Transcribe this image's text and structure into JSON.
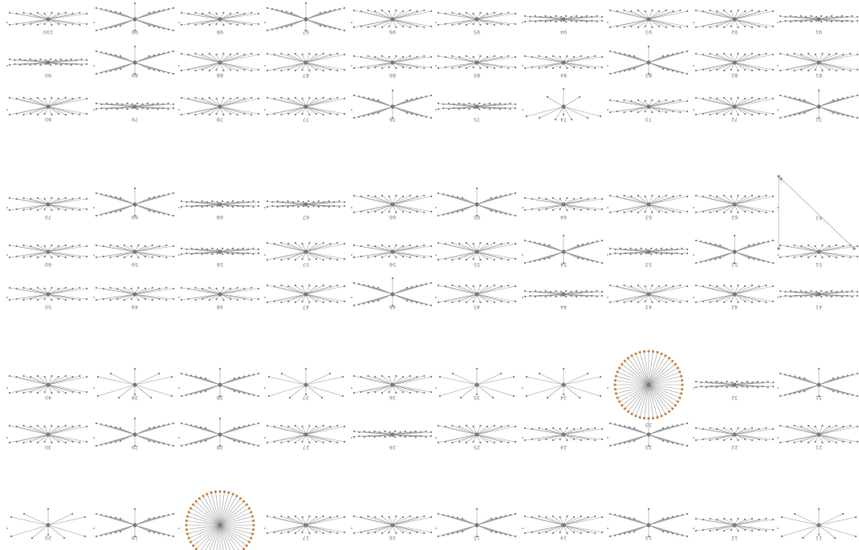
{
  "diagram": {
    "type": "star-network-grid",
    "edge_color": "#9b9b9b",
    "node_color": "#8a8a8a",
    "highlight_node_color": "#c98a4b",
    "rows": [
      {
        "cells": [
          {
            "label": "100",
            "style": "flat"
          },
          {
            "label": "99",
            "style": "x"
          },
          {
            "label": "98",
            "style": "flat"
          },
          {
            "label": "97",
            "style": "x"
          },
          {
            "label": "96",
            "style": "mid"
          },
          {
            "label": "95",
            "style": "flat"
          },
          {
            "label": "94",
            "style": "thin"
          },
          {
            "label": "93",
            "style": "mid"
          },
          {
            "label": "92",
            "style": "mid"
          },
          {
            "label": "91",
            "style": "thin"
          }
        ]
      },
      {
        "cells": [
          {
            "label": "90",
            "style": "thin"
          },
          {
            "label": "89",
            "style": "x"
          },
          {
            "label": "88",
            "style": "mid"
          },
          {
            "label": "87",
            "style": "mid"
          },
          {
            "label": "86",
            "style": "flat"
          },
          {
            "label": "85",
            "style": "flat"
          },
          {
            "label": "84",
            "style": "flat"
          },
          {
            "label": "83",
            "style": "x"
          },
          {
            "label": "82",
            "style": "mid"
          },
          {
            "label": "81",
            "style": "mid"
          }
        ]
      },
      {
        "cells": [
          {
            "label": "80",
            "style": "mid"
          },
          {
            "label": "79",
            "style": "thin"
          },
          {
            "label": "78",
            "style": "mid"
          },
          {
            "label": "77",
            "style": "mid"
          },
          {
            "label": "76",
            "style": "x"
          },
          {
            "label": "75",
            "style": "thin"
          },
          {
            "label": "74",
            "style": "tall"
          },
          {
            "label": "73",
            "style": "flat"
          },
          {
            "label": "72",
            "style": "mid"
          },
          {
            "label": "71",
            "style": "x"
          }
        ]
      },
      {
        "cells": [
          {
            "label": "70",
            "style": "flat"
          },
          {
            "label": "69",
            "style": "x"
          },
          {
            "label": "68",
            "style": "thin"
          },
          {
            "label": "67",
            "style": "thin"
          },
          {
            "label": "66",
            "style": "mid"
          },
          {
            "label": "65",
            "style": "x"
          },
          {
            "label": "64",
            "style": "flat"
          },
          {
            "label": "63",
            "style": "mid"
          },
          {
            "label": "62",
            "style": "mid"
          },
          {
            "label": "61",
            "style": "triangle"
          }
        ]
      },
      {
        "cells": [
          {
            "label": "60",
            "style": "flat"
          },
          {
            "label": "59",
            "style": "flat"
          },
          {
            "label": "58",
            "style": "thin"
          },
          {
            "label": "57",
            "style": "mid"
          },
          {
            "label": "56",
            "style": "flat"
          },
          {
            "label": "55",
            "style": "mid"
          },
          {
            "label": "54",
            "style": "x"
          },
          {
            "label": "53",
            "style": "thin"
          },
          {
            "label": "52",
            "style": "x"
          },
          {
            "label": "51",
            "style": "flat"
          }
        ]
      },
      {
        "cells": [
          {
            "label": "50",
            "style": "flat"
          },
          {
            "label": "49",
            "style": "flat"
          },
          {
            "label": "48",
            "style": "flat"
          },
          {
            "label": "47",
            "style": "mid"
          },
          {
            "label": "46",
            "style": "x"
          },
          {
            "label": "45",
            "style": "mid"
          },
          {
            "label": "44",
            "style": "thin"
          },
          {
            "label": "43",
            "style": "mid"
          },
          {
            "label": "42",
            "style": "mid"
          },
          {
            "label": "41",
            "style": "thin"
          }
        ]
      },
      {
        "cells": [
          {
            "label": "40",
            "style": "mid"
          },
          {
            "label": "39",
            "style": "sparse"
          },
          {
            "label": "38",
            "style": "x"
          },
          {
            "label": "37",
            "style": "sparse"
          },
          {
            "label": "36",
            "style": "mid"
          },
          {
            "label": "35",
            "style": "sparse"
          },
          {
            "label": "34",
            "style": "sparse"
          },
          {
            "label": "33",
            "style": "circle"
          },
          {
            "label": "32",
            "style": "thin"
          },
          {
            "label": "31",
            "style": "x"
          }
        ]
      },
      {
        "cells": [
          {
            "label": "30",
            "style": "mid"
          },
          {
            "label": "29",
            "style": "x"
          },
          {
            "label": "28",
            "style": "x"
          },
          {
            "label": "27",
            "style": "mid"
          },
          {
            "label": "26",
            "style": "thin"
          },
          {
            "label": "25",
            "style": "mid"
          },
          {
            "label": "24",
            "style": "flat"
          },
          {
            "label": "23",
            "style": "x"
          },
          {
            "label": "22",
            "style": "flat"
          },
          {
            "label": "21",
            "style": "mid"
          }
        ]
      },
      {
        "cells": [
          {
            "label": "20",
            "style": "sparse"
          },
          {
            "label": "19",
            "style": "x"
          },
          {
            "label": "18",
            "style": "circle"
          },
          {
            "label": "17",
            "style": "mid"
          },
          {
            "label": "16",
            "style": "mid"
          },
          {
            "label": "15",
            "style": "x"
          },
          {
            "label": "14",
            "style": "mid"
          },
          {
            "label": "13",
            "style": "x"
          },
          {
            "label": "12",
            "style": "flat"
          },
          {
            "label": "11",
            "style": "sparse"
          }
        ]
      }
    ]
  }
}
